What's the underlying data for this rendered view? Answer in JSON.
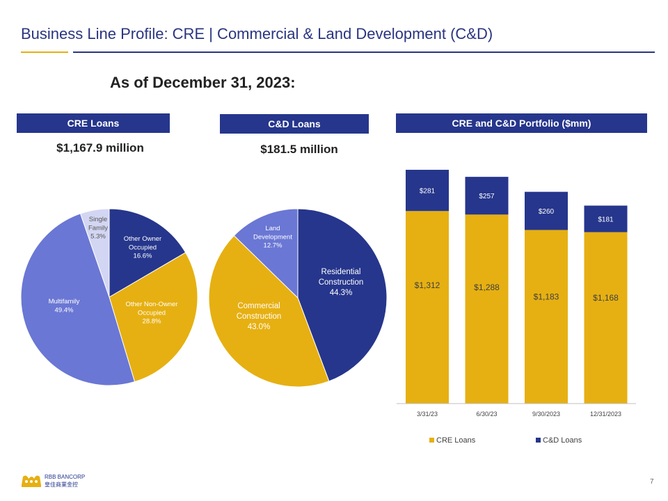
{
  "slide": {
    "title": "Business Line Profile:  CRE | Commercial & Land Development (C&D)",
    "as_of": "As of December 31, 2023:",
    "page_number": "7"
  },
  "logo": {
    "name_line1": "RBB BANCORP",
    "name_line2": "皇佳商業金控"
  },
  "colors": {
    "navy": "#26368c",
    "gold": "#e6b012",
    "periwinkle": "#6a77d4",
    "lavender": "#d3d6f2",
    "title_blue": "#2a3580"
  },
  "panels": {
    "cre": {
      "header": "CRE Loans",
      "amount": "$1,167.9 million"
    },
    "cd": {
      "header": "C&D Loans",
      "amount": "$181.5 million"
    },
    "portfolio": {
      "header": "CRE and C&D Portfolio ($mm)"
    }
  },
  "chart_data": [
    {
      "type": "pie",
      "title": "CRE Loans",
      "slices": [
        {
          "label_lines": [
            "Other Owner",
            "Occupied"
          ],
          "pct": "16.6%",
          "value": 16.6,
          "color": "#26368c"
        },
        {
          "label_lines": [
            "Other Non-Owner",
            "Occupied"
          ],
          "pct": "28.8%",
          "value": 28.8,
          "color": "#e6b012"
        },
        {
          "label_lines": [
            "Multifamily"
          ],
          "pct": "49.4%",
          "value": 49.4,
          "color": "#6a77d4"
        },
        {
          "label_lines": [
            "Single",
            "Family"
          ],
          "pct": "5.3%",
          "value": 5.3,
          "color": "#d3d6f2"
        }
      ]
    },
    {
      "type": "pie",
      "title": "C&D Loans",
      "slices": [
        {
          "label_lines": [
            "Residential",
            "Construction"
          ],
          "pct": "44.3%",
          "value": 44.3,
          "color": "#26368c"
        },
        {
          "label_lines": [
            "Commercial",
            "Construction"
          ],
          "pct": "43.0%",
          "value": 43.0,
          "color": "#e6b012"
        },
        {
          "label_lines": [
            "Land",
            "Development"
          ],
          "pct": "12.7%",
          "value": 12.7,
          "color": "#6a77d4"
        }
      ]
    },
    {
      "type": "bar",
      "stacked": true,
      "title": "CRE and C&D Portfolio ($mm)",
      "categories": [
        "3/31/23",
        "6/30/23",
        "9/30/2023",
        "12/31/2023"
      ],
      "series": [
        {
          "name": "CRE Loans",
          "color": "#e6b012",
          "values": [
            1312,
            1288,
            1183,
            1168
          ],
          "labels": [
            "$1,312",
            "$1,288",
            "$1,183",
            "$1,168"
          ]
        },
        {
          "name": "C&D Loans",
          "color": "#26368c",
          "values": [
            281,
            257,
            260,
            181
          ],
          "labels": [
            "$281",
            "$257",
            "$260",
            "$181"
          ]
        }
      ],
      "ylim": [
        0,
        1650
      ],
      "legend": "bottom",
      "grid": false
    }
  ]
}
